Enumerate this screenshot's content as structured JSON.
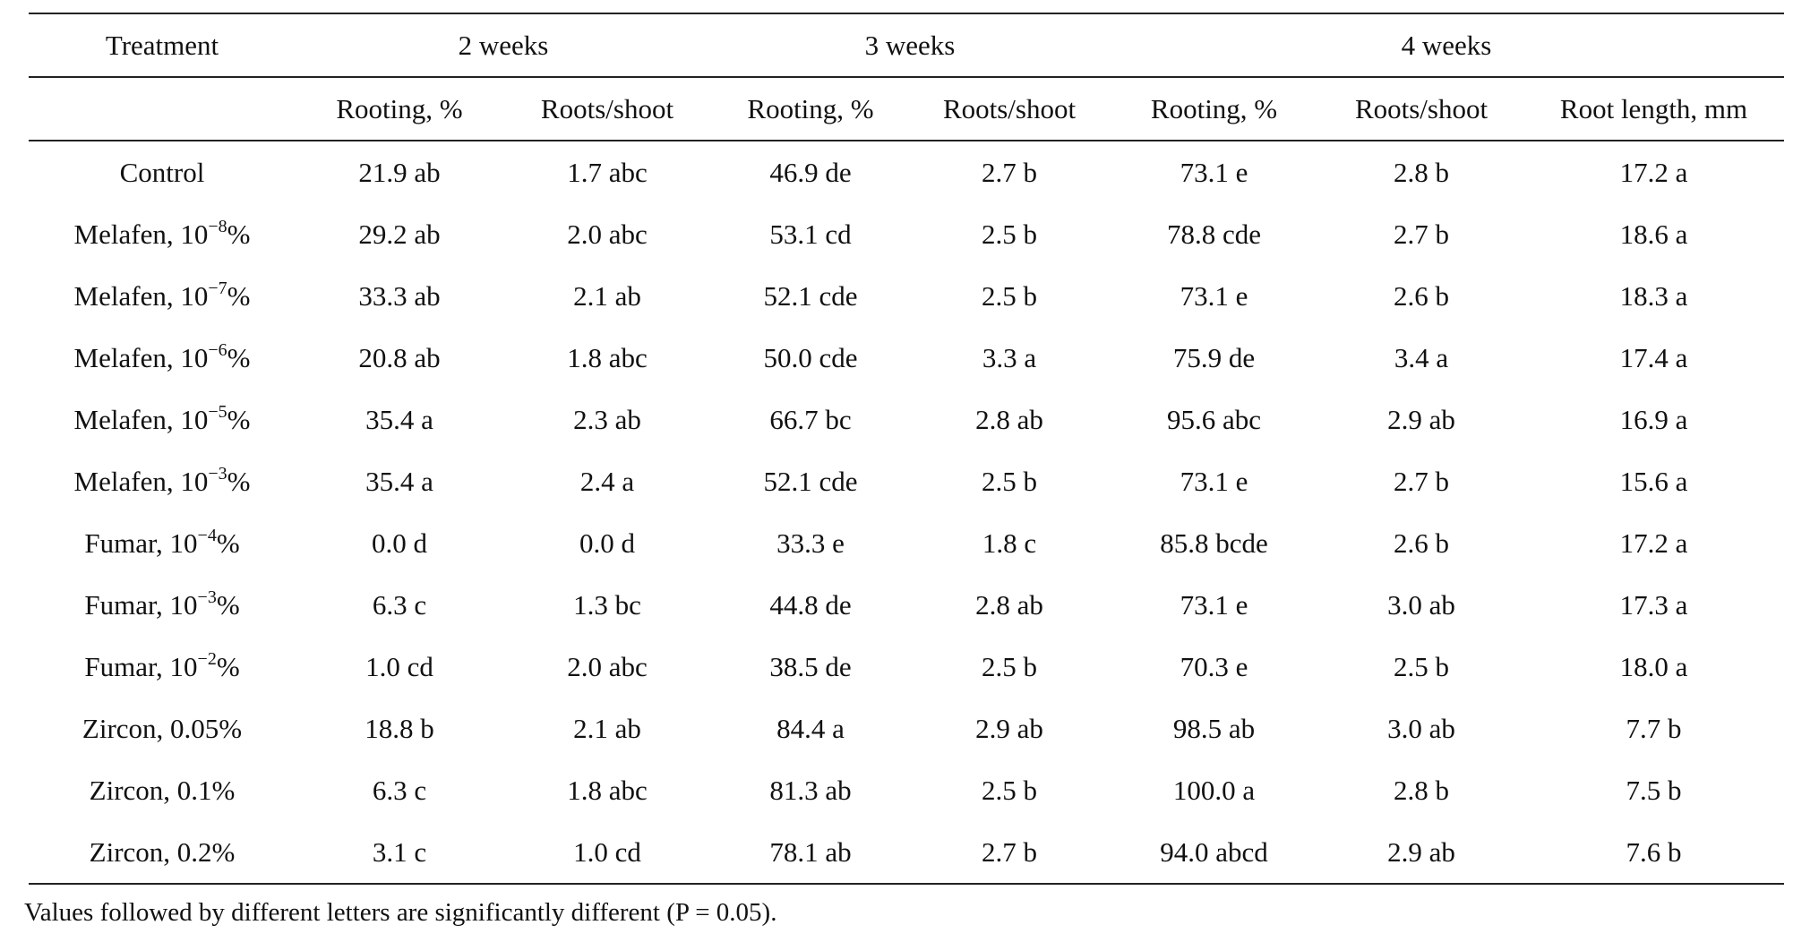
{
  "table": {
    "group_headers": [
      {
        "label": "Treatment",
        "span": 1
      },
      {
        "label": "2 weeks",
        "span": 2
      },
      {
        "label": "3 weeks",
        "span": 2
      },
      {
        "label": "4 weeks",
        "span": 3
      }
    ],
    "sub_headers": [
      "",
      "Rooting, %",
      "Roots/shoot",
      "Rooting, %",
      "Roots/shoot",
      "Rooting, %",
      "Roots/shoot",
      "Root length, mm"
    ],
    "rows": [
      {
        "treatment": {
          "name": "Control",
          "exp": "",
          "unit": ""
        },
        "values": [
          "21.9 ab",
          "1.7 abc",
          "46.9 de",
          "2.7 b",
          "73.1 e",
          "2.8 b",
          "17.2 a"
        ]
      },
      {
        "treatment": {
          "name": "Melafen, 10",
          "exp": "−8",
          "unit": "%"
        },
        "values": [
          "29.2 ab",
          "2.0 abc",
          "53.1 cd",
          "2.5 b",
          "78.8 cde",
          "2.7 b",
          "18.6 a"
        ]
      },
      {
        "treatment": {
          "name": "Melafen, 10",
          "exp": "−7",
          "unit": "%"
        },
        "values": [
          "33.3 ab",
          "2.1 ab",
          "52.1 cde",
          "2.5 b",
          "73.1 e",
          "2.6 b",
          "18.3 a"
        ]
      },
      {
        "treatment": {
          "name": "Melafen, 10",
          "exp": "−6",
          "unit": "%"
        },
        "values": [
          "20.8 ab",
          "1.8 abc",
          "50.0 cde",
          "3.3 a",
          "75.9 de",
          "3.4 a",
          "17.4 a"
        ]
      },
      {
        "treatment": {
          "name": "Melafen, 10",
          "exp": "−5",
          "unit": "%"
        },
        "values": [
          "35.4 a",
          "2.3 ab",
          "66.7 bc",
          "2.8 ab",
          "95.6 abc",
          "2.9 ab",
          "16.9 a"
        ]
      },
      {
        "treatment": {
          "name": "Melafen, 10",
          "exp": "−3",
          "unit": "%"
        },
        "values": [
          "35.4 a",
          "2.4 a",
          "52.1 cde",
          "2.5 b",
          "73.1 e",
          "2.7 b",
          "15.6 a"
        ]
      },
      {
        "treatment": {
          "name": "Fumar, 10",
          "exp": "−4",
          "unit": "%"
        },
        "values": [
          "0.0 d",
          "0.0 d",
          "33.3 e",
          "1.8 c",
          "85.8 bcde",
          "2.6 b",
          "17.2 a"
        ]
      },
      {
        "treatment": {
          "name": "Fumar, 10",
          "exp": "−3",
          "unit": "%"
        },
        "values": [
          "6.3 c",
          "1.3 bc",
          "44.8 de",
          "2.8 ab",
          "73.1 e",
          "3.0 ab",
          "17.3 a"
        ]
      },
      {
        "treatment": {
          "name": "Fumar, 10",
          "exp": "−2",
          "unit": "%"
        },
        "values": [
          "1.0 cd",
          "2.0 abc",
          "38.5 de",
          "2.5 b",
          "70.3 e",
          "2.5 b",
          "18.0 a"
        ]
      },
      {
        "treatment": {
          "name": "Zircon, 0.05%",
          "exp": "",
          "unit": ""
        },
        "values": [
          "18.8 b",
          "2.1 ab",
          "84.4 a",
          "2.9 ab",
          "98.5 ab",
          "3.0 ab",
          "7.7 b"
        ]
      },
      {
        "treatment": {
          "name": "Zircon, 0.1%",
          "exp": "",
          "unit": ""
        },
        "values": [
          "6.3 c",
          "1.8 abc",
          "81.3 ab",
          "2.5 b",
          "100.0 a",
          "2.8 b",
          "7.5 b"
        ]
      },
      {
        "treatment": {
          "name": "Zircon, 0.2%",
          "exp": "",
          "unit": ""
        },
        "values": [
          "3.1 c",
          "1.0 cd",
          "78.1 ab",
          "2.7 b",
          "94.0 abcd",
          "2.9 ab",
          "7.6 b"
        ]
      }
    ]
  },
  "footnote": "Values followed by different letters are significantly different (P = 0.05)."
}
